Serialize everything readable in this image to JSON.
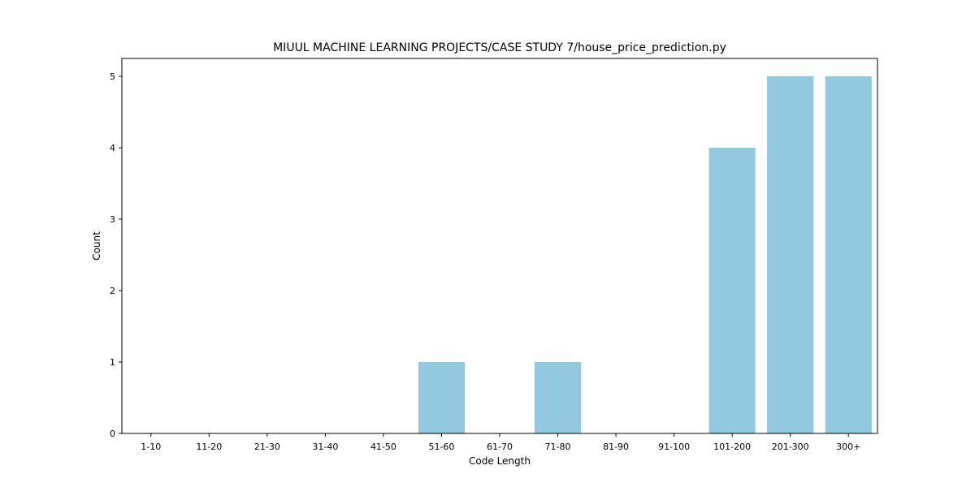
{
  "chart_data": {
    "type": "bar",
    "title": "MIUUL MACHINE LEARNING PROJECTS/CASE STUDY 7/house_price_prediction.py",
    "xlabel": "Code Length",
    "ylabel": "Count",
    "categories": [
      "1-10",
      "11-20",
      "21-30",
      "31-40",
      "41-50",
      "51-60",
      "61-70",
      "71-80",
      "81-90",
      "91-100",
      "101-200",
      "201-300",
      "300+"
    ],
    "values": [
      0,
      0,
      0,
      0,
      0,
      1,
      0,
      1,
      0,
      0,
      4,
      5,
      5
    ],
    "ylim": [
      0,
      5.25
    ],
    "yticks": [
      0,
      1,
      2,
      3,
      4,
      5
    ],
    "grid": false,
    "bar_color": "#92c9df"
  }
}
